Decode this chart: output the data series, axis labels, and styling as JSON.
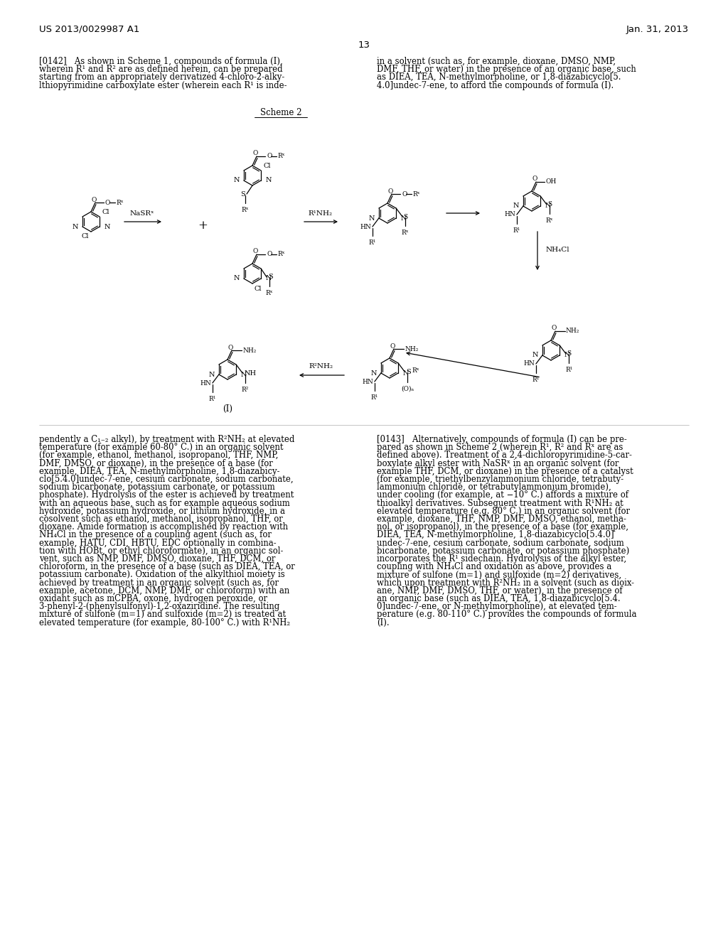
{
  "bg": "#ffffff",
  "header_left": "US 2013/0029987 A1",
  "header_right": "Jan. 31, 2013",
  "page_num": "13",
  "scheme_label": "Scheme 2",
  "para_left_top": "[0142]   As shown in Scheme 1, compounds of formula (I),\nwherein R¹ and R² are as defined herein, can be prepared\nstarting from an appropriately derivatized 4-chloro-2-alky-\nlthiopyrimidine carboxylate ester (wherein each R¹ is inde-",
  "para_right_top": "in a solvent (such as, for example, dioxane, DMSO, NMP,\nDMF, THF, or water) in the presence of an organic base, such\nas DIEA, TEA, N-methylmorpholine, or 1,8-diazabicyclo[5.\n4.0]undec-7-ene, to afford the compounds of formula (I).",
  "para_left_bot": "pendently a C₁₋₂ alkyl), by treatment with R²NH₂ at elevated\ntemperature (for example 60-80° C.) in an organic solvent\n(for example, ethanol, methanol, isopropanol, THF, NMP,\nDMF, DMSO, or dioxane), in the presence of a base (for\nexample, DIEA, TEA, N-methylmorpholine, 1,8-diazabicy-\nclo[5.4.0]undec-7-ene, cesium carbonate, sodium carbonate,\nsodium bicarbonate, potassium carbonate, or potassium\nphosphate). Hydrolysis of the ester is achieved by treatment\nwith an aqueous base, such as for example aqueous sodium\nhydroxide, potassium hydroxide, or lithium hydroxide, in a\ncosolvent such as ethanol, methanol, isopropanol, THF, or\ndioxane. Amide formation is accomplished by reaction with\nNH₄Cl in the presence of a coupling agent (such as, for\nexample, HATU, CDI, HBTU, EDC optionally in combina-\ntion with HOBt, or ethyl chloroformate), in an organic sol-\nvent, such as NMP, DMF, DMSO, dioxane, THF, DCM, or\nchloroform, in the presence of a base (such as DIEA, TEA, or\npotassium carbonate). Oxidation of the alkylthiol moiety is\nachieved by treatment in an organic solvent (such as, for\nexample, acetone, DCM, NMP, DMF, or chloroform) with an\noxidant such as mCPBA, oxone, hydrogen peroxide, or\n3-phenyl-2-(phenylsulfonyl)-1,2-oxaziridine. The resulting\nmixture of sulfone (m=1) and sulfoxide (m=2) is treated at\nelevated temperature (for example, 80-100° C.) with R¹NH₂",
  "para_right_bot": "[0143]   Alternatively, compounds of formula (I) can be pre-\npared as shown in Scheme 2 (wherein R¹, R² and Rˣ are as\ndefined above). Treatment of a 2,4-dichloropyrimidine-5-car-\nboxylate alkyl ester with NaSRˣ in an organic solvent (for\nexample THF, DCM, or dioxane) in the presence of a catalyst\n(for example, triethylbenzylammonium chloride, tetrabuty-\nlammonium chloride, or tetrabutylammonium bromide),\nunder cooling (for example, at −10° C.) affords a mixture of\nthioalkyl derivatives. Subsequent treatment with R¹NH₂ at\nelevated temperature (e.g. 80° C.) in an organic solvent (for\nexample, dioxane, THF, NMP, DMF, DMSO, ethanol, metha-\nnol, or isopropanol), in the presence of a base (for example,\nDIEA, TEA, N-methylmorpholine, 1,8-diazabicyclo[5.4.0]\nundec-7-ene, cesium carbonate, sodium carbonate, sodium\nbicarbonate, potassium carbonate, or potassium phosphate)\nincorporates the R¹ sidechain. Hydrolysis of the alkyl ester,\ncoupling with NH₄Cl and oxidation as above, provides a\nmixture of sulfone (m=1) and sulfoxide (m=2) derivatives,\nwhich upon treatment with R²NH₂ in a solvent (such as dioix-\nane, NMP, DMF, DMSO, THF, or water), in the presence of\nan organic base (such as DIEA, TEA, 1,8-diazabicyclo[5.4.\n0]undec-7-ene, or N-methylmorpholine), at elevated tem-\nperature (e.g. 80-110° C.) provides the compounds of formula\n(I)."
}
